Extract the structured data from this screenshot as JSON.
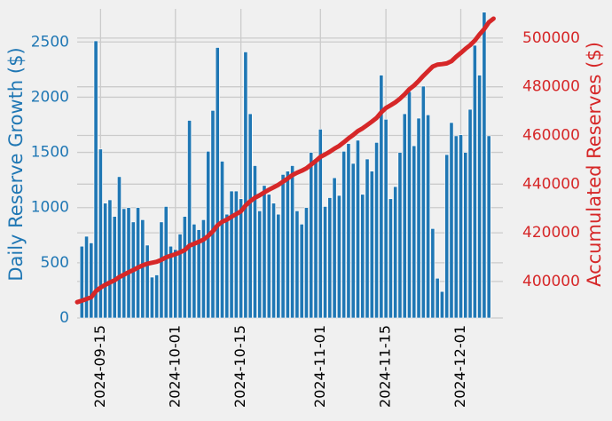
{
  "chart_data": {
    "type": "bar",
    "title": "",
    "ylabel_left": "Daily Reserve Growth ($)",
    "ylabel_right": "Accumulated Reserves ($)",
    "colors": {
      "bars": "#1f77b4",
      "line": "#d62728",
      "background": "#f0f0f0",
      "grid": "#cbcbcb"
    },
    "grid": true,
    "x_start": "2024-09-11",
    "x_range": [
      "2024-09-10",
      "2024-12-10"
    ],
    "x_ticks": [
      "2024-09-15",
      "2024-10-01",
      "2024-10-15",
      "2024-11-01",
      "2024-11-15",
      "2024-12-01"
    ],
    "yleft_lim": [
      0,
      2800
    ],
    "yleft_ticks": [
      0,
      500,
      1000,
      1500,
      2000,
      2500
    ],
    "yright_lim": [
      385000,
      512000
    ],
    "yright_ticks": [
      400000,
      420000,
      440000,
      460000,
      480000,
      500000
    ],
    "yright_tick_labels": [
      "400000",
      "420000",
      "440000",
      "460000",
      "480000",
      "500000"
    ],
    "series": [
      {
        "name": "Daily Reserve Growth",
        "kind": "bar",
        "axis": "left",
        "values": [
          650,
          740,
          680,
          2510,
          1530,
          1040,
          1070,
          920,
          1280,
          990,
          1000,
          870,
          1000,
          890,
          660,
          370,
          390,
          870,
          1010,
          650,
          620,
          760,
          920,
          1790,
          850,
          800,
          890,
          1510,
          1880,
          2450,
          1420,
          940,
          1150,
          1150,
          1080,
          2410,
          1850,
          1380,
          970,
          1200,
          1120,
          1040,
          940,
          1300,
          1330,
          1380,
          970,
          850,
          1000,
          1500,
          1440,
          1710,
          1010,
          1090,
          1270,
          1110,
          1510,
          1580,
          1400,
          1610,
          1120,
          1440,
          1330,
          1590,
          2200,
          1800,
          1080,
          1190,
          1500,
          1850,
          2050,
          1560,
          1810,
          2100,
          1840,
          810,
          360,
          240,
          1480,
          1770,
          1650,
          1660,
          1500,
          1890,
          2470,
          2200,
          2770,
          1650
        ]
      },
      {
        "name": "Accumulated Reserves",
        "kind": "line",
        "axis": "right",
        "points": [
          [
            "2024-09-10",
            391500
          ],
          [
            "2024-09-11",
            392100
          ],
          [
            "2024-09-12",
            392800
          ],
          [
            "2024-09-13",
            393500
          ],
          [
            "2024-09-14",
            396000
          ],
          [
            "2024-09-15",
            397500
          ],
          [
            "2024-09-16",
            398600
          ],
          [
            "2024-09-17",
            399600
          ],
          [
            "2024-09-18",
            400500
          ],
          [
            "2024-09-19",
            401800
          ],
          [
            "2024-09-20",
            402800
          ],
          [
            "2024-09-21",
            403800
          ],
          [
            "2024-09-22",
            404700
          ],
          [
            "2024-09-23",
            405700
          ],
          [
            "2024-09-24",
            406600
          ],
          [
            "2024-09-25",
            407300
          ],
          [
            "2024-09-26",
            407700
          ],
          [
            "2024-09-27",
            408100
          ],
          [
            "2024-09-28",
            408900
          ],
          [
            "2024-09-29",
            409900
          ],
          [
            "2024-09-30",
            410600
          ],
          [
            "2024-10-01",
            411200
          ],
          [
            "2024-10-02",
            412000
          ],
          [
            "2024-10-03",
            412900
          ],
          [
            "2024-10-04",
            414700
          ],
          [
            "2024-10-05",
            415500
          ],
          [
            "2024-10-06",
            416300
          ],
          [
            "2024-10-07",
            417200
          ],
          [
            "2024-10-08",
            418700
          ],
          [
            "2024-10-09",
            420600
          ],
          [
            "2024-10-10",
            423100
          ],
          [
            "2024-10-11",
            424500
          ],
          [
            "2024-10-12",
            425400
          ],
          [
            "2024-10-13",
            426600
          ],
          [
            "2024-10-14",
            427700
          ],
          [
            "2024-10-15",
            428800
          ],
          [
            "2024-10-16",
            431200
          ],
          [
            "2024-10-17",
            433000
          ],
          [
            "2024-10-18",
            434400
          ],
          [
            "2024-10-19",
            435400
          ],
          [
            "2024-10-20",
            436600
          ],
          [
            "2024-10-21",
            437700
          ],
          [
            "2024-10-22",
            438700
          ],
          [
            "2024-10-23",
            439700
          ],
          [
            "2024-10-24",
            441000
          ],
          [
            "2024-10-25",
            442300
          ],
          [
            "2024-10-26",
            443700
          ],
          [
            "2024-10-27",
            444700
          ],
          [
            "2024-10-28",
            445500
          ],
          [
            "2024-10-29",
            446500
          ],
          [
            "2024-10-30",
            448000
          ],
          [
            "2024-10-31",
            449500
          ],
          [
            "2024-11-01",
            451200
          ],
          [
            "2024-11-02",
            452200
          ],
          [
            "2024-11-03",
            453300
          ],
          [
            "2024-11-04",
            454600
          ],
          [
            "2024-11-05",
            455700
          ],
          [
            "2024-11-06",
            457200
          ],
          [
            "2024-11-07",
            458800
          ],
          [
            "2024-11-08",
            460200
          ],
          [
            "2024-11-09",
            461800
          ],
          [
            "2024-11-10",
            462900
          ],
          [
            "2024-11-11",
            464300
          ],
          [
            "2024-11-12",
            465700
          ],
          [
            "2024-11-13",
            467200
          ],
          [
            "2024-11-14",
            469500
          ],
          [
            "2024-11-15",
            471300
          ],
          [
            "2024-11-16",
            472400
          ],
          [
            "2024-11-17",
            473600
          ],
          [
            "2024-11-18",
            475100
          ],
          [
            "2024-11-19",
            476900
          ],
          [
            "2024-11-20",
            479000
          ],
          [
            "2024-11-21",
            480500
          ],
          [
            "2024-11-22",
            482400
          ],
          [
            "2024-11-23",
            484500
          ],
          [
            "2024-11-24",
            486400
          ],
          [
            "2024-11-25",
            488300
          ],
          [
            "2024-11-26",
            489100
          ],
          [
            "2024-11-27",
            489300
          ],
          [
            "2024-11-28",
            489600
          ],
          [
            "2024-11-29",
            490500
          ],
          [
            "2024-11-30",
            492300
          ],
          [
            "2024-12-01",
            493900
          ],
          [
            "2024-12-02",
            495600
          ],
          [
            "2024-12-03",
            497100
          ],
          [
            "2024-12-04",
            499000
          ],
          [
            "2024-12-05",
            501500
          ],
          [
            "2024-12-06",
            503700
          ],
          [
            "2024-12-07",
            506500
          ],
          [
            "2024-12-08",
            508000
          ]
        ]
      }
    ]
  }
}
